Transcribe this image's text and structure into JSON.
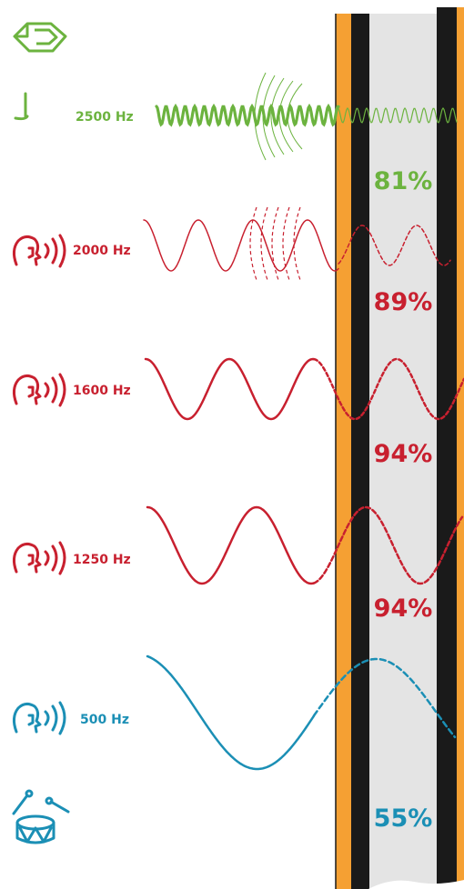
{
  "colors": {
    "green": "#6cb33f",
    "red": "#c8202f",
    "blue": "#1b8fb5",
    "orange": "#f5a033",
    "black": "#1a1a1a",
    "gray": "#e4e4e4"
  },
  "rows": [
    {
      "id": "2500",
      "freq_label": "2500 Hz",
      "percent": "81%",
      "icon": "whistle-icon",
      "color": "green"
    },
    {
      "id": "2000",
      "freq_label": "2000 Hz",
      "percent": "89%",
      "icon": "speaking-head-icon",
      "color": "red"
    },
    {
      "id": "1600",
      "freq_label": "1600 Hz",
      "percent": "94%",
      "icon": "speaking-head-icon",
      "color": "red"
    },
    {
      "id": "1250",
      "freq_label": "1250 Hz",
      "percent": "94%",
      "icon": "speaking-head-icon",
      "color": "red"
    },
    {
      "id": "500",
      "freq_label": "500 Hz",
      "percent": "55%",
      "icon": "speaking-head-icon",
      "color": "blue"
    }
  ],
  "wall_layers": [
    "orange",
    "black",
    "gray",
    "black",
    "orange"
  ],
  "top_icon": "whistle-icon",
  "bottom_icon": "drum-icon"
}
